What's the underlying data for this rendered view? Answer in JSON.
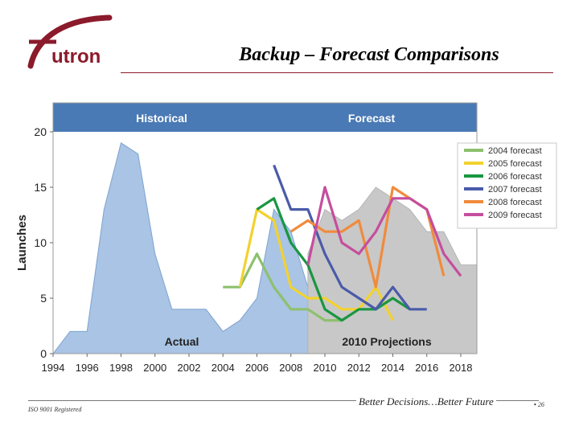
{
  "slide": {
    "logo_text": "utron",
    "title": "Backup – Forecast Comparisons",
    "footer_left": "ISO 9001 Registered",
    "footer_right": "Better Decisions…Better Future",
    "page_number": "26",
    "bullet": "•"
  },
  "colors": {
    "brand": "#8b1a2b",
    "header_band": "#4a7ab5",
    "actual_fill": "#a9c4e4",
    "projection_fill": "#c8c8c8"
  },
  "chart_data": {
    "type": "line",
    "title": "",
    "xlabel": "",
    "ylabel": "Launches",
    "xlim": [
      1994,
      2018
    ],
    "ylim": [
      0,
      20
    ],
    "x_ticks": [
      1994,
      1996,
      1998,
      2000,
      2002,
      2004,
      2006,
      2008,
      2010,
      2012,
      2014,
      2016,
      2018
    ],
    "y_ticks": [
      0,
      5,
      10,
      15,
      20
    ],
    "grid": false,
    "legend_position": "top-right",
    "header_labels": [
      "Historical",
      "Forecast"
    ],
    "region_labels": [
      "Actual",
      "2010 Projections"
    ],
    "areas": [
      {
        "name": "Actual",
        "color": "#a9c4e4",
        "points": [
          [
            1994,
            0
          ],
          [
            1995,
            2
          ],
          [
            1996,
            2
          ],
          [
            1997,
            13
          ],
          [
            1998,
            19
          ],
          [
            1999,
            18
          ],
          [
            2000,
            9
          ],
          [
            2001,
            4
          ],
          [
            2002,
            4
          ],
          [
            2003,
            4
          ],
          [
            2004,
            2
          ],
          [
            2005,
            3
          ],
          [
            2006,
            5
          ],
          [
            2007,
            13
          ],
          [
            2008,
            11
          ],
          [
            2009,
            6
          ],
          [
            2009,
            0
          ]
        ]
      },
      {
        "name": "2010 Projections",
        "color": "#c8c8c8",
        "points": [
          [
            2009,
            0
          ],
          [
            2009,
            9
          ],
          [
            2010,
            13
          ],
          [
            2011,
            12
          ],
          [
            2012,
            13
          ],
          [
            2013,
            15
          ],
          [
            2014,
            14
          ],
          [
            2015,
            13
          ],
          [
            2016,
            11
          ],
          [
            2017,
            11
          ],
          [
            2018,
            8
          ],
          [
            2019,
            8
          ],
          [
            2019,
            0
          ]
        ]
      }
    ],
    "series": [
      {
        "name": "2004 forecast",
        "color": "#8dc06e",
        "points": [
          [
            2004,
            6
          ],
          [
            2005,
            6
          ],
          [
            2006,
            9
          ],
          [
            2007,
            6
          ],
          [
            2008,
            4
          ],
          [
            2009,
            4
          ],
          [
            2010,
            3
          ],
          [
            2011,
            3
          ]
        ]
      },
      {
        "name": "2005 forecast",
        "color": "#f2d22e",
        "points": [
          [
            2005,
            6
          ],
          [
            2006,
            13
          ],
          [
            2007,
            12
          ],
          [
            2008,
            6
          ],
          [
            2009,
            5
          ],
          [
            2010,
            5
          ],
          [
            2011,
            4
          ],
          [
            2012,
            4
          ],
          [
            2013,
            6
          ],
          [
            2014,
            3
          ]
        ]
      },
      {
        "name": "2006 forecast",
        "color": "#1a9641",
        "points": [
          [
            2006,
            13
          ],
          [
            2007,
            14
          ],
          [
            2008,
            10
          ],
          [
            2009,
            8
          ],
          [
            2010,
            4
          ],
          [
            2011,
            3
          ],
          [
            2012,
            4
          ],
          [
            2013,
            4
          ],
          [
            2014,
            5
          ],
          [
            2015,
            4
          ]
        ]
      },
      {
        "name": "2007 forecast",
        "color": "#4a5ba8",
        "points": [
          [
            2007,
            17
          ],
          [
            2008,
            13
          ],
          [
            2009,
            13
          ],
          [
            2010,
            9
          ],
          [
            2011,
            6
          ],
          [
            2012,
            5
          ],
          [
            2013,
            4
          ],
          [
            2014,
            6
          ],
          [
            2015,
            4
          ],
          [
            2016,
            4
          ]
        ]
      },
      {
        "name": "2008 forecast",
        "color": "#f08b3c",
        "points": [
          [
            2008,
            11
          ],
          [
            2009,
            12
          ],
          [
            2010,
            11
          ],
          [
            2011,
            11
          ],
          [
            2012,
            12
          ],
          [
            2013,
            6
          ],
          [
            2014,
            15
          ],
          [
            2015,
            14
          ],
          [
            2016,
            13
          ],
          [
            2017,
            7
          ]
        ]
      },
      {
        "name": "2009 forecast",
        "color": "#c54e9e",
        "points": [
          [
            2009,
            8
          ],
          [
            2010,
            15
          ],
          [
            2011,
            10
          ],
          [
            2012,
            9
          ],
          [
            2013,
            11
          ],
          [
            2014,
            14
          ],
          [
            2015,
            14
          ],
          [
            2016,
            13
          ],
          [
            2017,
            9
          ],
          [
            2018,
            7
          ]
        ]
      }
    ]
  }
}
